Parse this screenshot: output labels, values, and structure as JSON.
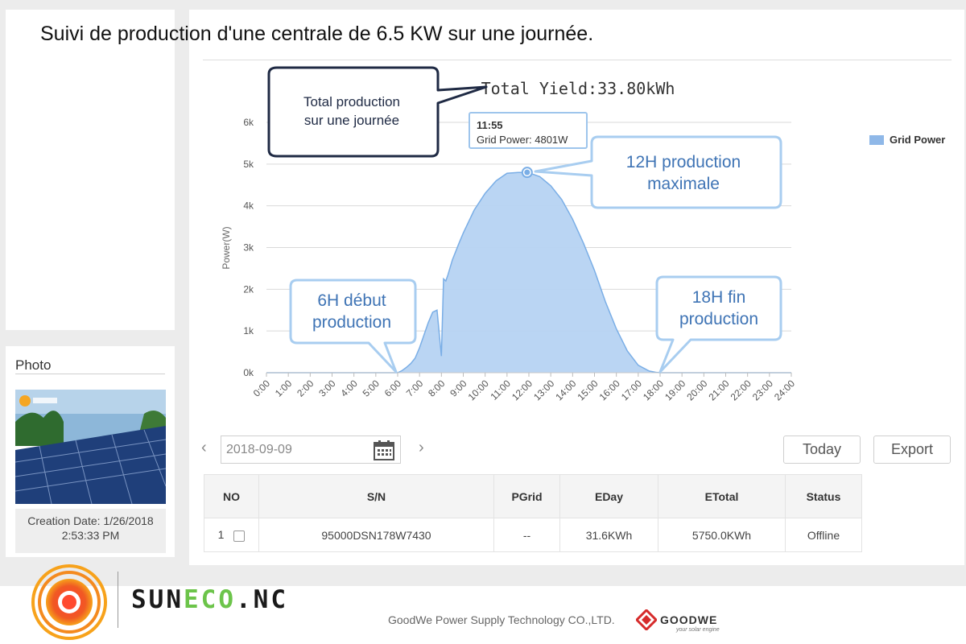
{
  "headline": "Suivi de production d'une centrale de 6.5 KW sur une journée.",
  "photo_panel": {
    "title": "Photo",
    "creation_date": "Creation Date: 1/26/2018",
    "creation_time": "2:53:33 PM"
  },
  "chart_data": {
    "type": "area",
    "title": "Total Yield:33.80kWh",
    "xlabel": "",
    "ylabel": "Power(W)",
    "x_ticks": [
      "0:00",
      "1:00",
      "2:00",
      "3:00",
      "4:00",
      "5:00",
      "6:00",
      "7:00",
      "8:00",
      "9:00",
      "10:00",
      "11:00",
      "12:00",
      "13:00",
      "14:00",
      "15:00",
      "16:00",
      "17:00",
      "18:00",
      "19:00",
      "20:00",
      "21:00",
      "22:00",
      "23:00",
      "24:00"
    ],
    "y_ticks": [
      "0k",
      "1k",
      "2k",
      "3k",
      "4k",
      "5k",
      "6k"
    ],
    "xlim": [
      0,
      24
    ],
    "ylim": [
      0,
      6000
    ],
    "grid": true,
    "legend_position": "top-right",
    "series": [
      {
        "name": "Grid Power",
        "color": "#8fb8e8",
        "x": [
          0,
          6.0,
          6.2,
          6.4,
          6.6,
          6.8,
          7.0,
          7.2,
          7.4,
          7.6,
          7.8,
          8.0,
          8.1,
          8.2,
          8.3,
          8.5,
          8.8,
          9.0,
          9.5,
          10.0,
          10.5,
          11.0,
          11.5,
          11.92,
          12.0,
          12.5,
          13.0,
          13.5,
          14.0,
          14.5,
          15.0,
          15.5,
          16.0,
          16.5,
          17.0,
          17.5,
          17.8,
          18.0,
          24
        ],
        "y": [
          0,
          0,
          50,
          130,
          220,
          350,
          600,
          900,
          1200,
          1450,
          1500,
          400,
          2250,
          2200,
          2350,
          2700,
          3100,
          3350,
          3900,
          4300,
          4600,
          4780,
          4800,
          4801,
          4790,
          4700,
          4480,
          4150,
          3680,
          3100,
          2450,
          1700,
          1050,
          520,
          180,
          40,
          10,
          0,
          0
        ]
      }
    ],
    "tooltip": {
      "time": "11:55",
      "label": "Grid Power: 4801W",
      "x": 11.92,
      "y": 4801
    },
    "legend": [
      "Grid Power"
    ]
  },
  "annotations": {
    "total": [
      "Total production",
      "sur une journée"
    ],
    "max": [
      "12H  production",
      "maximale"
    ],
    "start": [
      "6H début",
      "production"
    ],
    "end": [
      "18H fin",
      "production"
    ]
  },
  "controls": {
    "date": "2018-09-09",
    "today_label": "Today",
    "export_label": "Export"
  },
  "table": {
    "headers": [
      "NO",
      "S/N",
      "PGrid",
      "EDay",
      "ETotal",
      "Status"
    ],
    "rows": [
      {
        "no": "1",
        "sn": "95000DSN178W7430",
        "pgrid": "--",
        "eday": "31.6KWh",
        "etotal": "5750.0KWh",
        "status": "Offline"
      }
    ]
  },
  "footer": {
    "brand_part1": "SUN",
    "brand_part2": "ECO",
    "brand_part3": ".NC",
    "company": "GoodWe Power Supply Technology CO.,LTD.",
    "goodwe": "GOODWE",
    "goodwe_slogan": "your solar engine"
  }
}
